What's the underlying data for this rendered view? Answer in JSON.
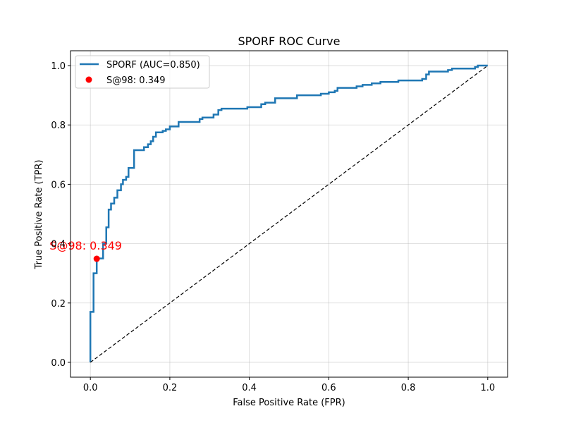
{
  "chart_data": {
    "type": "line",
    "title": "SPORF ROC Curve",
    "xlabel": "False Positive Rate (FPR)",
    "ylabel": "True Positive Rate (TPR)",
    "xlim": [
      -0.05,
      1.05
    ],
    "ylim": [
      -0.05,
      1.05
    ],
    "grid": true,
    "legend_position": "upper-left",
    "xticks": [
      "0.0",
      "0.2",
      "0.4",
      "0.6",
      "0.8",
      "1.0"
    ],
    "yticks": [
      "0.0",
      "0.2",
      "0.4",
      "0.6",
      "0.8",
      "1.0"
    ],
    "series": [
      {
        "name": "SPORF (AUC=0.850)",
        "color": "#1f77b4",
        "style": "solid-step",
        "points": [
          [
            0.0,
            0.0
          ],
          [
            0.0,
            0.17
          ],
          [
            0.008,
            0.17
          ],
          [
            0.008,
            0.3
          ],
          [
            0.016,
            0.3
          ],
          [
            0.016,
            0.35
          ],
          [
            0.032,
            0.35
          ],
          [
            0.032,
            0.4
          ],
          [
            0.04,
            0.4
          ],
          [
            0.04,
            0.455
          ],
          [
            0.046,
            0.455
          ],
          [
            0.046,
            0.515
          ],
          [
            0.052,
            0.515
          ],
          [
            0.052,
            0.535
          ],
          [
            0.06,
            0.535
          ],
          [
            0.06,
            0.555
          ],
          [
            0.068,
            0.555
          ],
          [
            0.068,
            0.58
          ],
          [
            0.077,
            0.58
          ],
          [
            0.077,
            0.6
          ],
          [
            0.082,
            0.6
          ],
          [
            0.082,
            0.615
          ],
          [
            0.09,
            0.615
          ],
          [
            0.09,
            0.625
          ],
          [
            0.096,
            0.625
          ],
          [
            0.096,
            0.655
          ],
          [
            0.11,
            0.655
          ],
          [
            0.11,
            0.715
          ],
          [
            0.135,
            0.715
          ],
          [
            0.135,
            0.725
          ],
          [
            0.145,
            0.725
          ],
          [
            0.145,
            0.735
          ],
          [
            0.152,
            0.735
          ],
          [
            0.152,
            0.745
          ],
          [
            0.158,
            0.745
          ],
          [
            0.158,
            0.76
          ],
          [
            0.165,
            0.76
          ],
          [
            0.165,
            0.775
          ],
          [
            0.182,
            0.775
          ],
          [
            0.182,
            0.78
          ],
          [
            0.19,
            0.78
          ],
          [
            0.19,
            0.785
          ],
          [
            0.2,
            0.785
          ],
          [
            0.2,
            0.795
          ],
          [
            0.222,
            0.795
          ],
          [
            0.222,
            0.81
          ],
          [
            0.275,
            0.81
          ],
          [
            0.275,
            0.82
          ],
          [
            0.282,
            0.82
          ],
          [
            0.282,
            0.825
          ],
          [
            0.31,
            0.825
          ],
          [
            0.31,
            0.835
          ],
          [
            0.322,
            0.835
          ],
          [
            0.322,
            0.85
          ],
          [
            0.33,
            0.85
          ],
          [
            0.33,
            0.855
          ],
          [
            0.395,
            0.855
          ],
          [
            0.395,
            0.86
          ],
          [
            0.43,
            0.86
          ],
          [
            0.43,
            0.87
          ],
          [
            0.44,
            0.87
          ],
          [
            0.44,
            0.875
          ],
          [
            0.465,
            0.875
          ],
          [
            0.465,
            0.89
          ],
          [
            0.52,
            0.89
          ],
          [
            0.52,
            0.9
          ],
          [
            0.58,
            0.9
          ],
          [
            0.58,
            0.905
          ],
          [
            0.6,
            0.905
          ],
          [
            0.6,
            0.91
          ],
          [
            0.615,
            0.91
          ],
          [
            0.615,
            0.915
          ],
          [
            0.622,
            0.915
          ],
          [
            0.622,
            0.925
          ],
          [
            0.67,
            0.925
          ],
          [
            0.67,
            0.93
          ],
          [
            0.685,
            0.93
          ],
          [
            0.685,
            0.935
          ],
          [
            0.708,
            0.935
          ],
          [
            0.708,
            0.94
          ],
          [
            0.73,
            0.94
          ],
          [
            0.73,
            0.945
          ],
          [
            0.775,
            0.945
          ],
          [
            0.775,
            0.95
          ],
          [
            0.835,
            0.95
          ],
          [
            0.835,
            0.955
          ],
          [
            0.845,
            0.955
          ],
          [
            0.845,
            0.97
          ],
          [
            0.852,
            0.97
          ],
          [
            0.852,
            0.98
          ],
          [
            0.9,
            0.98
          ],
          [
            0.9,
            0.985
          ],
          [
            0.91,
            0.985
          ],
          [
            0.91,
            0.99
          ],
          [
            0.968,
            0.99
          ],
          [
            0.968,
            0.995
          ],
          [
            0.975,
            0.995
          ],
          [
            0.975,
            1.0
          ],
          [
            1.0,
            1.0
          ]
        ]
      },
      {
        "name": "",
        "color": "#000000",
        "style": "dashed",
        "points": [
          [
            0.0,
            0.0
          ],
          [
            1.0,
            1.0
          ]
        ]
      }
    ],
    "markers": [
      {
        "name": "S@98: 0.349",
        "x": 0.016,
        "y": 0.349,
        "color": "#ff0000",
        "annotation": "S@98: 0.349"
      }
    ]
  }
}
